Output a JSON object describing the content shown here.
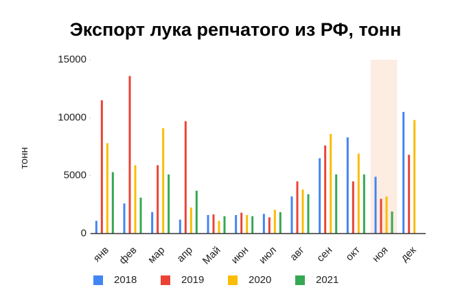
{
  "chart_data": {
    "type": "bar",
    "title": "Экспорт лука репчатого из РФ, тонн",
    "y_label": "тонн",
    "categories": [
      "янв",
      "фев",
      "мар",
      "апр",
      "Май",
      "июн",
      "июл",
      "авг",
      "сен",
      "окт",
      "ноя",
      "дек"
    ],
    "series": [
      {
        "name": "2018",
        "color": "#4285f4",
        "values": [
          1100,
          2600,
          1850,
          1200,
          1600,
          1600,
          1700,
          3200,
          6500,
          8300,
          4900,
          10500
        ]
      },
      {
        "name": "2019",
        "color": "#ea4335",
        "values": [
          11500,
          13600,
          5900,
          9700,
          1650,
          1800,
          1400,
          4500,
          7600,
          4500,
          3000,
          6800
        ]
      },
      {
        "name": "2020",
        "color": "#fbbc04",
        "values": [
          7800,
          5900,
          9100,
          2250,
          1100,
          1600,
          2050,
          3800,
          8600,
          6900,
          3200,
          9800
        ]
      },
      {
        "name": "2021",
        "color": "#34a853",
        "values": [
          5300,
          3100,
          5100,
          3700,
          1500,
          1500,
          1850,
          3400,
          5100,
          5100,
          1900,
          null
        ]
      }
    ],
    "ylim": [
      0,
      15000
    ],
    "yticks": [
      0,
      5000,
      10000,
      15000
    ],
    "grid": false,
    "highlight": 10,
    "highlight_color": "#fdece2",
    "legend": "bottom"
  }
}
